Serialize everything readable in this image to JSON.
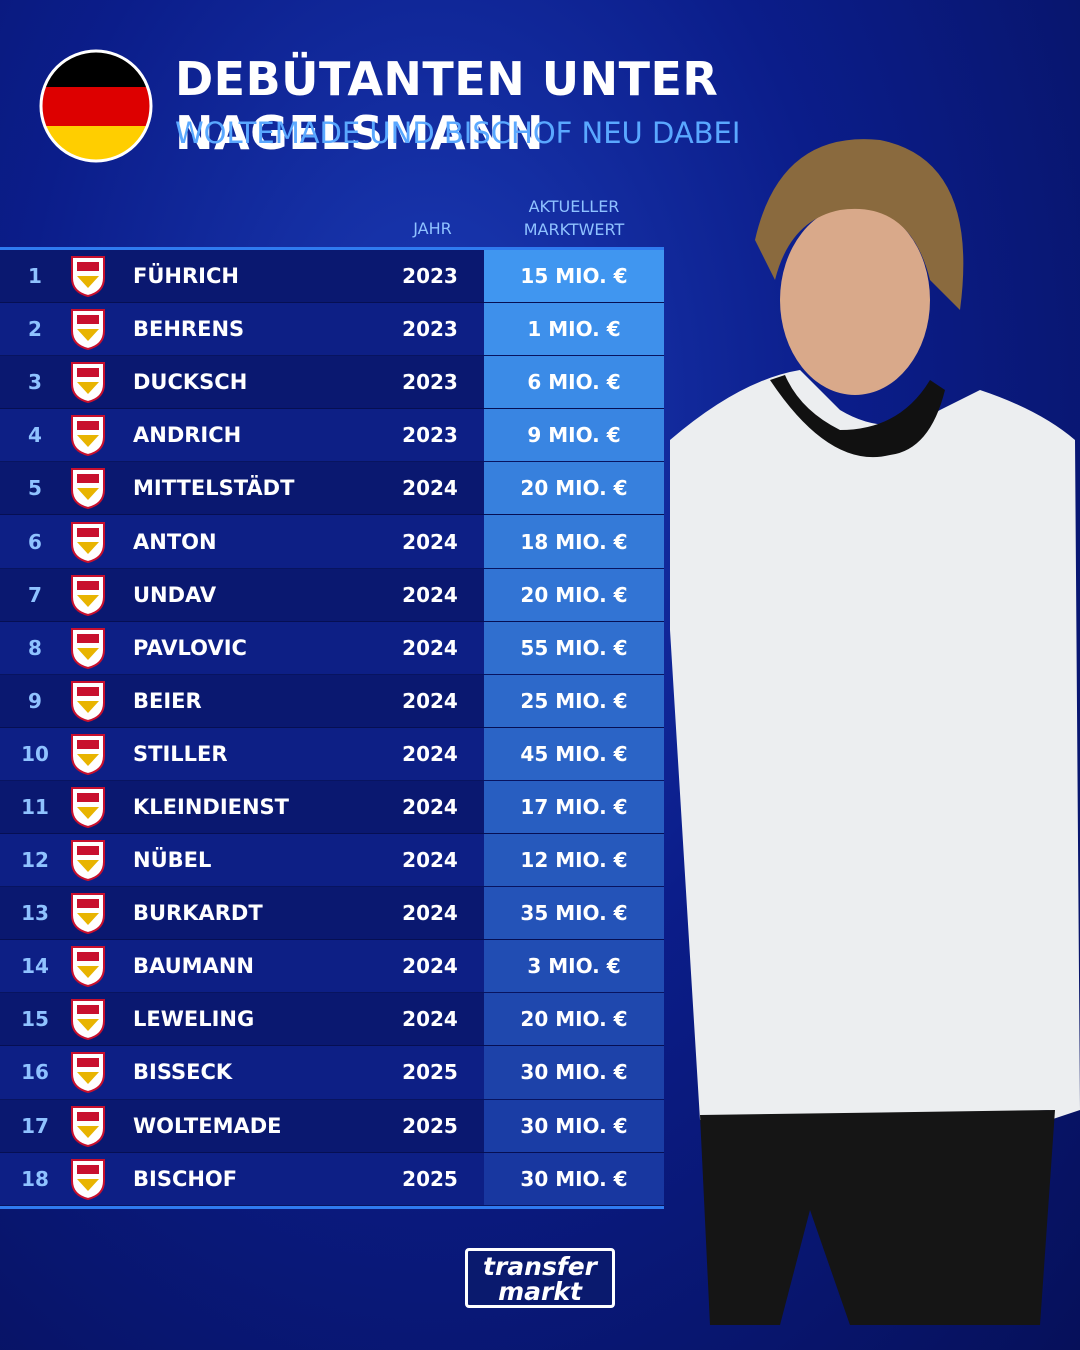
{
  "header": {
    "title": "DEBÜTANTEN UNTER NAGELSMANN",
    "subtitle": "WOLTEMADE UND BISCHOF NEU DABEI"
  },
  "table": {
    "columns": {
      "year": "JAHR",
      "value": "AKTUELLER MARKTWERT"
    },
    "rows": [
      {
        "rank": 1,
        "name": "FÜHRICH",
        "year": 2023,
        "value": "15 MIO. €"
      },
      {
        "rank": 2,
        "name": "BEHRENS",
        "year": 2023,
        "value": "1 MIO. €"
      },
      {
        "rank": 3,
        "name": "DUCKSCH",
        "year": 2023,
        "value": "6 MIO. €"
      },
      {
        "rank": 4,
        "name": "ANDRICH",
        "year": 2023,
        "value": "9 MIO. €"
      },
      {
        "rank": 5,
        "name": "MITTELSTÄDT",
        "year": 2024,
        "value": "20 MIO. €"
      },
      {
        "rank": 6,
        "name": "ANTON",
        "year": 2024,
        "value": "18 MIO. €"
      },
      {
        "rank": 7,
        "name": "UNDAV",
        "year": 2024,
        "value": "20 MIO. €"
      },
      {
        "rank": 8,
        "name": "PAVLOVIC",
        "year": 2024,
        "value": "55 MIO. €"
      },
      {
        "rank": 9,
        "name": "BEIER",
        "year": 2024,
        "value": "25 MIO. €"
      },
      {
        "rank": 10,
        "name": "STILLER",
        "year": 2024,
        "value": "45 MIO. €"
      },
      {
        "rank": 11,
        "name": "KLEINDIENST",
        "year": 2024,
        "value": "17 MIO. €"
      },
      {
        "rank": 12,
        "name": "NÜBEL",
        "year": 2024,
        "value": "12 MIO. €"
      },
      {
        "rank": 13,
        "name": "BURKARDT",
        "year": 2024,
        "value": "35 MIO. €"
      },
      {
        "rank": 14,
        "name": "BAUMANN",
        "year": 2024,
        "value": "3 MIO. €"
      },
      {
        "rank": 15,
        "name": "LEWELING",
        "year": 2024,
        "value": "20 MIO. €"
      },
      {
        "rank": 16,
        "name": "BISSECK",
        "year": 2025,
        "value": "30 MIO. €"
      },
      {
        "rank": 17,
        "name": "WOLTEMADE",
        "year": 2025,
        "value": "30 MIO. €"
      },
      {
        "rank": 18,
        "name": "BISCHOF",
        "year": 2025,
        "value": "30 MIO. €"
      }
    ]
  },
  "footer": {
    "logo_top": "transfer",
    "logo_bottom": "markt"
  }
}
